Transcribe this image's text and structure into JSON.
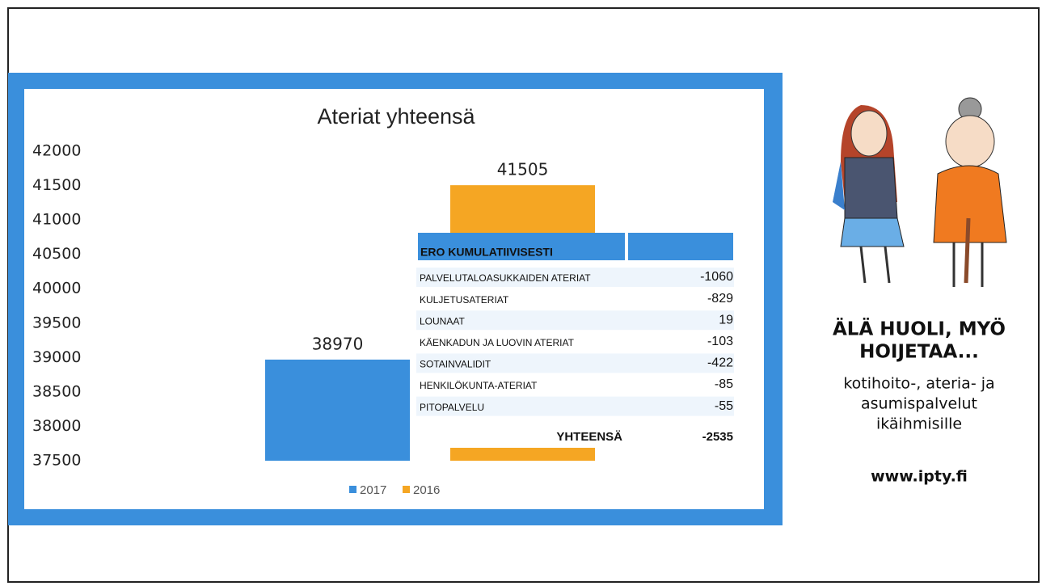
{
  "chart_data": {
    "type": "bar",
    "title": "Ateriat yhteensä",
    "categories": [
      null
    ],
    "series": [
      {
        "name": "2017",
        "color": "#3a8fdc",
        "values": [
          38970
        ]
      },
      {
        "name": "2016",
        "color": "#f5a623",
        "values": [
          41505
        ]
      }
    ],
    "ylim": [
      37500,
      42000
    ],
    "yticks": [
      37500,
      38000,
      38500,
      39000,
      39500,
      40000,
      40500,
      41000,
      41500,
      42000
    ],
    "legend": "bottom"
  },
  "table": {
    "title": "ERO KUMULATIIVISESTI",
    "rows": [
      [
        "PALVELUTALOASUKKAIDEN ATERIAT",
        -1060
      ],
      [
        "KULJETUSATERIAT",
        -829
      ],
      [
        "LOUNAAT",
        19
      ],
      [
        "KÄENKADUN JA LUOVIN ATERIAT",
        -103
      ],
      [
        "SOTAINVALIDIT",
        -422
      ],
      [
        "HENKILÖKUNTA-ATERIAT",
        -85
      ],
      [
        "PITOPALVELU",
        -55
      ]
    ],
    "total": [
      "YHTEENSÄ",
      -2535
    ]
  },
  "side": {
    "slogan": [
      "ÄLÄ HUOLI, MYÖ",
      "HOIJETAA..."
    ],
    "text": [
      "kotihoito-, ateria- ja",
      "asumispalvelut",
      "ikäihmisille"
    ],
    "url": "www.ipty.fi"
  }
}
